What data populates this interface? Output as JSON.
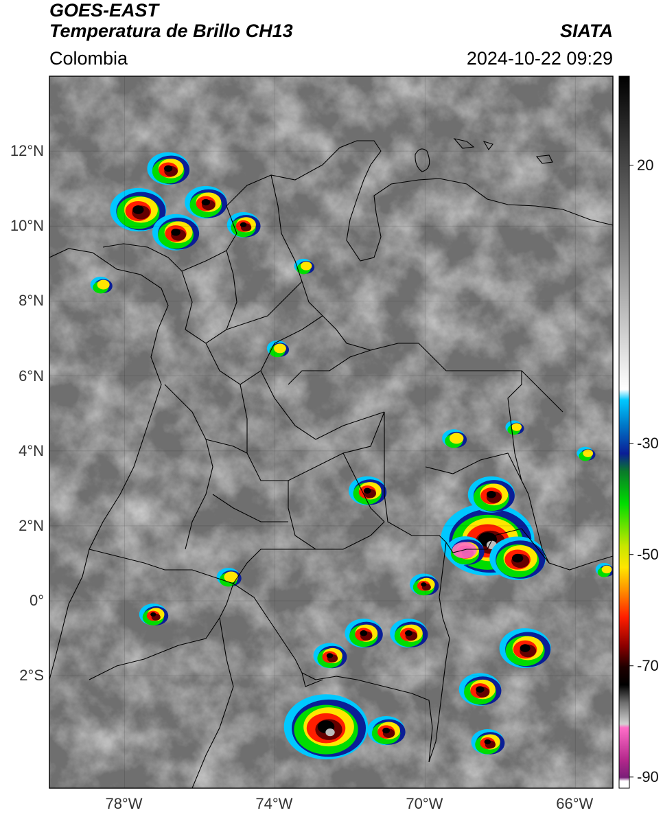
{
  "header": {
    "satellite": "GOES-EAST",
    "product": "Temperatura de Brillo CH13",
    "agency": "SIATA",
    "region": "Colombia",
    "datetime": "2024-10-22 09:29"
  },
  "map": {
    "lon_range": [
      -80,
      -65
    ],
    "lat_range": [
      -5,
      14
    ],
    "lat_ticks": [
      {
        "value": 12,
        "label": "12°N"
      },
      {
        "value": 10,
        "label": "10°N"
      },
      {
        "value": 8,
        "label": "8°N"
      },
      {
        "value": 6,
        "label": "6°N"
      },
      {
        "value": 4,
        "label": "4°N"
      },
      {
        "value": 2,
        "label": "2°N"
      },
      {
        "value": 0,
        "label": "0°"
      },
      {
        "value": -2,
        "label": "2°S"
      }
    ],
    "lon_ticks": [
      {
        "value": -78,
        "label": "78°W"
      },
      {
        "value": -74,
        "label": "74°W"
      },
      {
        "value": -70,
        "label": "70°W"
      },
      {
        "value": -66,
        "label": "66°W"
      }
    ],
    "grid": true
  },
  "colorbar": {
    "range": [
      -92,
      36
    ],
    "ticks": [
      {
        "value": 20,
        "label": "20"
      },
      {
        "value": -30,
        "label": "-30"
      },
      {
        "value": -50,
        "label": "-50"
      },
      {
        "value": -70,
        "label": "-70"
      },
      {
        "value": -90,
        "label": "-90"
      }
    ],
    "colors": {
      "cyan": "#00c8ff",
      "blue": "#0a1e96",
      "green": "#00dc00",
      "yellow": "#ffe600",
      "red": "#ff1e00",
      "darkred": "#640000",
      "black": "#000000",
      "pink": "#ff6ec8",
      "purple": "#7a1e78"
    }
  },
  "storms": [
    {
      "lon": -72.6,
      "lat": -3.4,
      "size": 0.9
    },
    {
      "lon": -72.5,
      "lat": -1.5,
      "size": 0.35
    },
    {
      "lon": -68.3,
      "lat": 1.6,
      "size": 1.0
    },
    {
      "lon": -67.5,
      "lat": 1.1,
      "size": 0.6
    },
    {
      "lon": -68.9,
      "lat": 1.3,
      "size": 0.4
    },
    {
      "lon": -68.2,
      "lat": 2.8,
      "size": 0.5
    },
    {
      "lon": -67.3,
      "lat": -1.3,
      "size": 0.55
    },
    {
      "lon": -68.5,
      "lat": -2.4,
      "size": 0.45
    },
    {
      "lon": -68.3,
      "lat": -3.8,
      "size": 0.35
    },
    {
      "lon": -70.0,
      "lat": 0.4,
      "size": 0.3
    },
    {
      "lon": -70.4,
      "lat": -0.9,
      "size": 0.4
    },
    {
      "lon": -71.6,
      "lat": -0.9,
      "size": 0.4
    },
    {
      "lon": -71.5,
      "lat": 2.9,
      "size": 0.4
    },
    {
      "lon": -71.0,
      "lat": -3.5,
      "size": 0.4
    },
    {
      "lon": -69.2,
      "lat": 4.3,
      "size": 0.25
    },
    {
      "lon": -67.6,
      "lat": 4.6,
      "size": 0.18
    },
    {
      "lon": -65.7,
      "lat": 3.9,
      "size": 0.18
    },
    {
      "lon": -77.6,
      "lat": 10.4,
      "size": 0.6
    },
    {
      "lon": -76.6,
      "lat": 9.8,
      "size": 0.5
    },
    {
      "lon": -76.8,
      "lat": 11.5,
      "size": 0.45
    },
    {
      "lon": -75.8,
      "lat": 10.6,
      "size": 0.45
    },
    {
      "lon": -74.8,
      "lat": 10.0,
      "size": 0.35
    },
    {
      "lon": -75.2,
      "lat": 0.6,
      "size": 0.25
    },
    {
      "lon": -77.2,
      "lat": -0.4,
      "size": 0.3
    },
    {
      "lon": -78.6,
      "lat": 8.4,
      "size": 0.22
    },
    {
      "lon": -73.9,
      "lat": 6.7,
      "size": 0.22
    },
    {
      "lon": -73.2,
      "lat": 8.9,
      "size": 0.2
    },
    {
      "lon": -65.2,
      "lat": 0.8,
      "size": 0.18
    }
  ]
}
